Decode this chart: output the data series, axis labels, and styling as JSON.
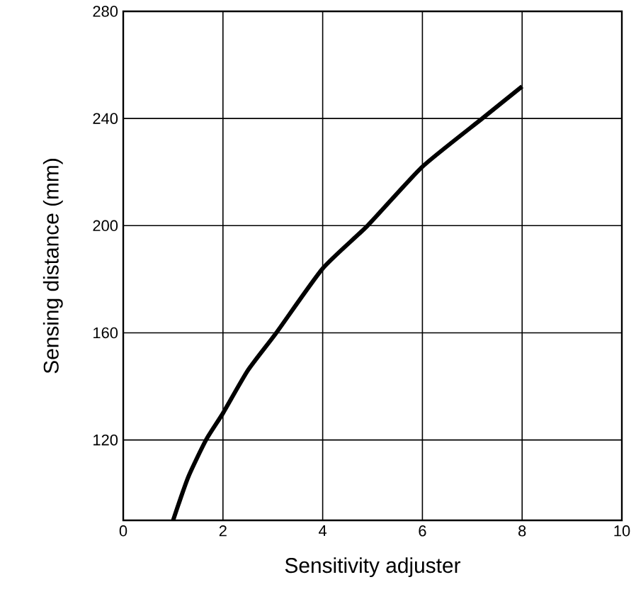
{
  "chart_data": {
    "type": "line",
    "xlabel": "Sensitivity adjuster",
    "ylabel": "Sensing distance (mm)",
    "series": [
      {
        "color": "#000000",
        "x": [
          1,
          1.3,
          1.66,
          2,
          2.5,
          3.07,
          4,
          4.9,
          6,
          7.2,
          8
        ],
        "values": [
          90,
          106,
          120,
          130,
          146,
          160,
          184,
          200,
          222,
          240,
          252
        ]
      }
    ],
    "xlim": [
      0,
      10
    ],
    "xticks": [
      0,
      2,
      4,
      6,
      8,
      10
    ],
    "ylim": [
      90,
      280
    ],
    "yticks": [
      120,
      160,
      200,
      240,
      280
    ],
    "grid": true,
    "marker": "none",
    "line_style": "solid"
  }
}
